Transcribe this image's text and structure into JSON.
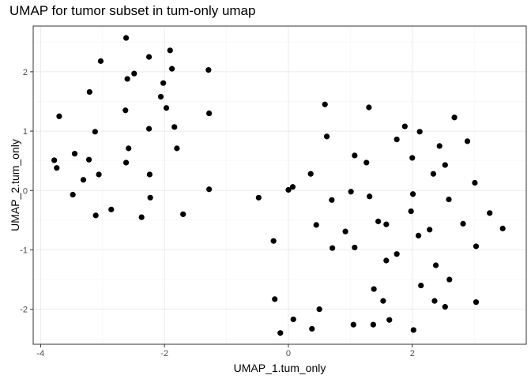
{
  "chart_data": {
    "type": "scatter",
    "title": "UMAP for tumor subset in tum-only umap",
    "xlabel": "UMAP_1.tum_only",
    "ylabel": "UMAP_2.tum_only",
    "xlim": [
      -4.12,
      3.84
    ],
    "ylim": [
      -2.59,
      2.77
    ],
    "xticks": [
      -4,
      -2,
      0,
      2
    ],
    "yticks": [
      -2,
      -1,
      0,
      1,
      2
    ],
    "grid": true,
    "point_color": "#000000",
    "panel_border_color": "#333333",
    "grid_major_color": "#ebebeb",
    "points": [
      [
        -2.62,
        2.57
      ],
      [
        -1.91,
        2.36
      ],
      [
        -2.25,
        2.25
      ],
      [
        -3.03,
        2.18
      ],
      [
        -1.88,
        2.05
      ],
      [
        -2.49,
        1.97
      ],
      [
        -1.29,
        2.03
      ],
      [
        -2.6,
        1.88
      ],
      [
        -2.02,
        1.81
      ],
      [
        -3.21,
        1.66
      ],
      [
        -2.06,
        1.58
      ],
      [
        -1.97,
        1.39
      ],
      [
        -2.63,
        1.35
      ],
      [
        -1.28,
        1.3
      ],
      [
        -3.7,
        1.25
      ],
      [
        -1.84,
        1.07
      ],
      [
        -2.25,
        1.04
      ],
      [
        -3.12,
        0.99
      ],
      [
        -1.8,
        0.71
      ],
      [
        -2.58,
        0.71
      ],
      [
        -3.45,
        0.62
      ],
      [
        -3.22,
        0.52
      ],
      [
        -3.78,
        0.51
      ],
      [
        -2.62,
        0.47
      ],
      [
        -3.74,
        0.38
      ],
      [
        -3.06,
        0.27
      ],
      [
        -2.24,
        0.27
      ],
      [
        -3.31,
        0.18
      ],
      [
        -1.28,
        0.02
      ],
      [
        -3.48,
        -0.07
      ],
      [
        -2.23,
        -0.12
      ],
      [
        -2.86,
        -0.32
      ],
      [
        -3.11,
        -0.42
      ],
      [
        -2.37,
        -0.45
      ],
      [
        -1.7,
        -0.4
      ],
      [
        0.59,
        1.45
      ],
      [
        1.3,
        1.4
      ],
      [
        2.68,
        1.23
      ],
      [
        1.88,
        1.08
      ],
      [
        2.12,
        0.99
      ],
      [
        0.62,
        0.91
      ],
      [
        1.75,
        0.86
      ],
      [
        2.89,
        0.83
      ],
      [
        2.44,
        0.75
      ],
      [
        1.07,
        0.59
      ],
      [
        2.0,
        0.55
      ],
      [
        1.26,
        0.47
      ],
      [
        2.53,
        0.43
      ],
      [
        0.36,
        0.28
      ],
      [
        2.34,
        0.28
      ],
      [
        3.01,
        0.13
      ],
      [
        0.07,
        0.06
      ],
      [
        0.0,
        0.01
      ],
      [
        1.01,
        -0.02
      ],
      [
        2.01,
        -0.06
      ],
      [
        -0.48,
        -0.12
      ],
      [
        1.31,
        -0.1
      ],
      [
        0.7,
        -0.16
      ],
      [
        2.59,
        -0.15
      ],
      [
        1.98,
        -0.35
      ],
      [
        3.25,
        -0.38
      ],
      [
        1.45,
        -0.52
      ],
      [
        1.58,
        -0.57
      ],
      [
        0.45,
        -0.58
      ],
      [
        2.82,
        -0.56
      ],
      [
        2.28,
        -0.66
      ],
      [
        3.46,
        -0.64
      ],
      [
        0.92,
        -0.69
      ],
      [
        2.1,
        -0.76
      ],
      [
        -0.24,
        -0.85
      ],
      [
        0.71,
        -0.97
      ],
      [
        1.07,
        -0.96
      ],
      [
        3.03,
        -0.94
      ],
      [
        1.75,
        -1.07
      ],
      [
        1.58,
        -1.18
      ],
      [
        2.38,
        -1.26
      ],
      [
        2.6,
        -1.5
      ],
      [
        2.14,
        -1.6
      ],
      [
        1.38,
        -1.66
      ],
      [
        -0.22,
        -1.83
      ],
      [
        1.53,
        -1.86
      ],
      [
        2.36,
        -1.86
      ],
      [
        2.53,
        -1.96
      ],
      [
        3.03,
        -1.88
      ],
      [
        0.5,
        -2.0
      ],
      [
        1.63,
        -2.18
      ],
      [
        0.08,
        -2.17
      ],
      [
        1.05,
        -2.26
      ],
      [
        1.37,
        -2.26
      ],
      [
        0.38,
        -2.33
      ],
      [
        2.02,
        -2.35
      ],
      [
        -0.13,
        -2.4
      ]
    ]
  }
}
